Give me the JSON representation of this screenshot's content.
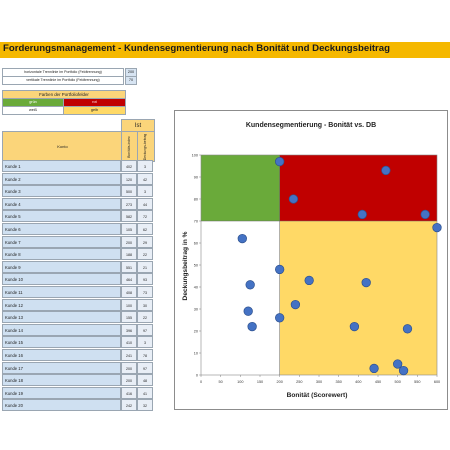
{
  "title": "Forderungsmanagement - Kundensegmentierung nach Bonität und Deckungsbeitrag",
  "config": [
    {
      "label": "horizontale Trennlinie im Portfolio (Feldtrennung)",
      "value": "200"
    },
    {
      "label": "vertikale Trennlinie im Portfolio (Feldtrennung)",
      "value": "70"
    }
  ],
  "farben": {
    "header": "Farben der Portfoliofelder",
    "swatches": [
      {
        "label": "grün",
        "color": "#6aaa3a",
        "text_color": "#ffffff"
      },
      {
        "label": "rot",
        "color": "#c00000",
        "text_color": "#ffffff"
      },
      {
        "label": "weiß",
        "color": "#ffffff",
        "text_color": "#222222"
      },
      {
        "label": "gelb",
        "color": "#ffd966",
        "text_color": "#222222"
      }
    ]
  },
  "table": {
    "ist_label": "Ist",
    "konto_label": "Konto",
    "col_score": "Bonitäts-index",
    "col_db": "Deckungs-beitrag",
    "rows": [
      {
        "konto": "Kunde 1",
        "score": "402",
        "db": "3"
      },
      {
        "konto": "Kunde 2",
        "score": "120",
        "db": "42"
      },
      {
        "konto": "Kunde 3",
        "score": "500",
        "db": "3"
      },
      {
        "konto": "Kunde 4",
        "score": "273",
        "db": "44"
      },
      {
        "konto": "Kunde 5",
        "score": "582",
        "db": "72"
      },
      {
        "konto": "Kunde 6",
        "score": "105",
        "db": "62"
      },
      {
        "konto": "Kunde 7",
        "score": "200",
        "db": "29"
      },
      {
        "konto": "Kunde 8",
        "score": "188",
        "db": "22"
      },
      {
        "konto": "Kunde 9",
        "score": "551",
        "db": "21"
      },
      {
        "konto": "Kunde 10",
        "score": "464",
        "db": "93"
      },
      {
        "konto": "Kunde 11",
        "score": "408",
        "db": "73"
      },
      {
        "konto": "Kunde 12",
        "score": "100",
        "db": "30"
      },
      {
        "konto": "Kunde 13",
        "score": "155",
        "db": "22"
      },
      {
        "konto": "Kunde 14",
        "score": "396",
        "db": "97"
      },
      {
        "konto": "Kunde 15",
        "score": "410",
        "db": "3"
      },
      {
        "konto": "Kunde 16",
        "score": "241",
        "db": "78"
      },
      {
        "konto": "Kunde 17",
        "score": "200",
        "db": "97"
      },
      {
        "konto": "Kunde 18",
        "score": "200",
        "db": "48"
      },
      {
        "konto": "Kunde 19",
        "score": "416",
        "db": "41"
      },
      {
        "konto": "Kunde 20",
        "score": "242",
        "db": "32"
      }
    ]
  },
  "chart_data": {
    "type": "scatter",
    "title": "Kundensegmentierung - Bonität vs. DB",
    "xlabel": "Bonität (Scorewert)",
    "ylabel": "Deckungsbeitrag in %",
    "xlim": [
      0,
      600
    ],
    "ylim": [
      0,
      100
    ],
    "xticks": [
      "0",
      "50",
      "100",
      "150",
      "200",
      "250",
      "300",
      "350",
      "400",
      "450",
      "500",
      "550",
      "600"
    ],
    "yticks": [
      "0",
      "10",
      "20",
      "30",
      "40",
      "50",
      "60",
      "70",
      "80",
      "90",
      "100"
    ],
    "split_x": 200,
    "split_y": 70,
    "quadrant_colors": {
      "top_left": "#6aaa3a",
      "top_right": "#c00000",
      "bottom_left": "#ffffff",
      "bottom_right": "#ffd966"
    },
    "point_color": "#4472c4",
    "points": [
      {
        "x": 200,
        "y": 97
      },
      {
        "x": 235,
        "y": 80
      },
      {
        "x": 470,
        "y": 93
      },
      {
        "x": 410,
        "y": 73
      },
      {
        "x": 570,
        "y": 73
      },
      {
        "x": 600,
        "y": 67
      },
      {
        "x": 105,
        "y": 62
      },
      {
        "x": 200,
        "y": 48
      },
      {
        "x": 125,
        "y": 41
      },
      {
        "x": 275,
        "y": 43
      },
      {
        "x": 420,
        "y": 42
      },
      {
        "x": 120,
        "y": 29
      },
      {
        "x": 240,
        "y": 32
      },
      {
        "x": 130,
        "y": 22
      },
      {
        "x": 200,
        "y": 26
      },
      {
        "x": 390,
        "y": 22
      },
      {
        "x": 525,
        "y": 21
      },
      {
        "x": 500,
        "y": 5
      },
      {
        "x": 440,
        "y": 3
      },
      {
        "x": 515,
        "y": 2
      }
    ]
  }
}
